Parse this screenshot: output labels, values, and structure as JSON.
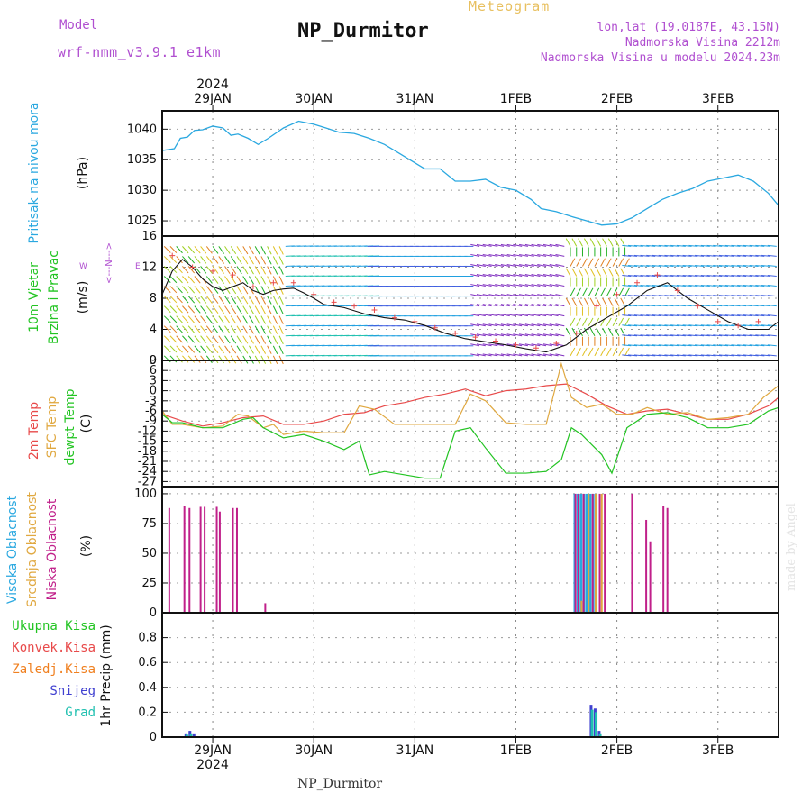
{
  "header": {
    "model_label": "Model",
    "model_id": "wrf-nmm_v3.9.1 e1km",
    "title": "NP_Durmitor",
    "meteogram": "Meteogram",
    "coords": "lon,lat (19.0187E, 43.15N)",
    "elevation": "Nadmorska Visina 2212m",
    "model_elevation": "Nadmorska Visina u modelu 2024.23m"
  },
  "footer": {
    "station": "NP_Durmitor",
    "credit": "made by Angel"
  },
  "colors": {
    "pressure": "#2aa8e0",
    "temp2m": "#e84a4a",
    "sfc": "#e0a840",
    "dewpt": "#22c422",
    "high_cloud": "#2aa8e0",
    "mid_cloud": "#e0a840",
    "low_cloud": "#c0208a",
    "total_precip": "#22c422",
    "conv": "#e84a4a",
    "frozen": "#f08020",
    "snow": "#4040d0",
    "grad": "#20c0b0",
    "wind_speed": "#111111",
    "gust": "#e84a4a"
  },
  "chart_data": [
    {
      "type": "line",
      "panel": "pressure",
      "ylabel_main": "Pritisak na nivou mora",
      "ylabel_unit": "(hPa)",
      "time_unit": "days from 28 JAN 2024 12 UTC",
      "ylim": [
        1022.5,
        1043
      ],
      "yticks": [
        1025,
        1030,
        1035,
        1040
      ],
      "series": [
        {
          "name": "",
          "x": [
            0,
            0.12,
            0.18,
            0.25,
            0.32,
            0.4,
            0.5,
            0.6,
            0.68,
            0.75,
            0.85,
            0.95,
            1.05,
            1.2,
            1.35,
            1.5,
            1.62,
            1.75,
            1.9,
            2.05,
            2.2,
            2.35,
            2.5,
            2.6,
            2.75,
            2.9,
            3.05,
            3.2,
            3.35,
            3.5,
            3.65,
            3.75,
            3.9,
            4.05,
            4.2,
            4.35,
            4.5,
            4.65,
            4.8,
            4.95,
            5.1,
            5.25,
            5.4,
            5.55,
            5.7,
            5.85,
            6.0,
            6.1
          ],
          "y": [
            1036.5,
            1036.8,
            1038.5,
            1038.7,
            1039.8,
            1039.9,
            1040.5,
            1040.2,
            1039,
            1039.2,
            1038.5,
            1037.5,
            1038.5,
            1040.2,
            1041.3,
            1040.8,
            1040.2,
            1039.5,
            1039.3,
            1038.5,
            1037.5,
            1036,
            1034.5,
            1033.5,
            1033.5,
            1031.5,
            1031.5,
            1031.8,
            1030.5,
            1030,
            1028.5,
            1027,
            1026.5,
            1025.7,
            1025,
            1024.3,
            1024.5,
            1025.5,
            1027,
            1028.5,
            1029.5,
            1030.3,
            1031.5,
            1032,
            1032.5,
            1031.5,
            1029.5,
            1027.5
          ]
        }
      ]
    },
    {
      "type": "line",
      "panel": "wind",
      "ylabel_main": "10m Vjetar",
      "ylabel_sub": "Brzina i Pravac",
      "ylabel_unit": "(m/s)",
      "compass": "N",
      "compass_w": "W",
      "compass_e": "E",
      "ylim": [
        0,
        16
      ],
      "yticks": [
        0,
        4,
        8,
        12,
        16
      ],
      "series": [
        {
          "name": "",
          "x": [
            0,
            0.1,
            0.2,
            0.3,
            0.4,
            0.5,
            0.6,
            0.7,
            0.8,
            0.9,
            1.0,
            1.1,
            1.2,
            1.3,
            1.4,
            1.5,
            1.6,
            1.7,
            1.8,
            2.0,
            2.2,
            2.4,
            2.6,
            2.8,
            3.0,
            3.2,
            3.4,
            3.6,
            3.8,
            4.0,
            4.2,
            4.4,
            4.6,
            4.8,
            5.0,
            5.2,
            5.4,
            5.6,
            5.8,
            6.0,
            6.1
          ],
          "y": [
            8.5,
            11.5,
            13,
            12,
            10.5,
            9.5,
            9,
            9.5,
            10,
            9,
            8.5,
            9,
            9.2,
            9.3,
            8.7,
            8,
            7.2,
            7,
            6.8,
            6,
            5.5,
            5.2,
            4.5,
            3.5,
            2.8,
            2.4,
            2,
            1.5,
            1.1,
            2,
            4,
            5.5,
            7,
            9,
            10,
            8,
            6.5,
            5,
            4,
            4,
            5
          ]
        }
      ],
      "gust_x": [
        0.1,
        0.3,
        0.5,
        0.7,
        0.9,
        1.1,
        1.3,
        1.5,
        1.7,
        1.9,
        2.1,
        2.3,
        2.5,
        2.7,
        2.9,
        3.1,
        3.3,
        3.5,
        3.7,
        3.9,
        4.1,
        4.3,
        4.5,
        4.7,
        4.9,
        5.1,
        5.3,
        5.5,
        5.7,
        5.9
      ],
      "gust_y": [
        13.5,
        12,
        11.5,
        11,
        9.5,
        10,
        10,
        8.5,
        7.5,
        7,
        6.5,
        5.5,
        5,
        4.2,
        3.5,
        3,
        2.5,
        2,
        1.6,
        2.2,
        3.5,
        7,
        8.5,
        10,
        11,
        9,
        7,
        5,
        4.5,
        5
      ]
    },
    {
      "type": "line",
      "panel": "temperature",
      "ylabel_main": "2m Temp",
      "ylabel_sub": "SFC Temp",
      "ylabel_sub2": "dewpt Temp",
      "ylabel_unit": "(C)",
      "ylim": [
        -28.5,
        9
      ],
      "yticks": [
        -27,
        -24,
        -21,
        -18,
        -15,
        -12,
        -9,
        -6,
        -3,
        0,
        3,
        6,
        9
      ],
      "series": [
        {
          "name": "2m Temp",
          "x": [
            0,
            0.2,
            0.4,
            0.6,
            0.8,
            1.0,
            1.2,
            1.4,
            1.6,
            1.8,
            2.0,
            2.2,
            2.4,
            2.6,
            2.8,
            3.0,
            3.2,
            3.4,
            3.6,
            3.8,
            4.0,
            4.2,
            4.4,
            4.6,
            4.8,
            5.0,
            5.2,
            5.4,
            5.6,
            5.8,
            6.0,
            6.1
          ],
          "y": [
            -7,
            -9,
            -10.5,
            -9.5,
            -8,
            -7.5,
            -10,
            -10,
            -9,
            -7,
            -6.5,
            -4.5,
            -3.5,
            -2,
            -1,
            0.5,
            -1.5,
            0,
            0.5,
            1.5,
            2,
            -1,
            -4.5,
            -7,
            -6,
            -5.5,
            -7,
            -8.5,
            -8.5,
            -7,
            -4.5,
            -2
          ]
        },
        {
          "name": "SFC Temp",
          "x": [
            0,
            0.1,
            0.2,
            0.4,
            0.6,
            0.75,
            0.85,
            1.0,
            1.1,
            1.2,
            1.4,
            1.6,
            1.8,
            1.95,
            2.1,
            2.3,
            2.5,
            2.7,
            2.9,
            3.05,
            3.2,
            3.4,
            3.6,
            3.8,
            3.95,
            4.05,
            4.2,
            4.35,
            4.5,
            4.65,
            4.8,
            5.0,
            5.2,
            5.4,
            5.6,
            5.8,
            5.95,
            6.1
          ],
          "y": [
            -6,
            -10,
            -10,
            -11,
            -10.5,
            -7,
            -7.5,
            -11,
            -10,
            -13,
            -12,
            -12.5,
            -12.5,
            -4.5,
            -5.5,
            -10,
            -10,
            -10,
            -10,
            -1,
            -3,
            -9.5,
            -10,
            -10,
            8,
            -2,
            -5,
            -4,
            -7,
            -7,
            -5,
            -7,
            -6.5,
            -8.5,
            -8,
            -7,
            -2,
            1.5
          ]
        },
        {
          "name": "dewpt Temp",
          "x": [
            0,
            0.1,
            0.2,
            0.4,
            0.6,
            0.8,
            0.9,
            1.0,
            1.2,
            1.4,
            1.6,
            1.8,
            1.95,
            2.05,
            2.2,
            2.4,
            2.6,
            2.75,
            2.9,
            3.05,
            3.2,
            3.4,
            3.6,
            3.8,
            3.95,
            4.05,
            4.15,
            4.25,
            4.35,
            4.45,
            4.6,
            4.8,
            5.0,
            5.2,
            5.4,
            5.6,
            5.8,
            6.0,
            6.1
          ],
          "y": [
            -7,
            -9.5,
            -9.5,
            -11,
            -11,
            -8.5,
            -8,
            -11,
            -14,
            -13,
            -15,
            -17.5,
            -15,
            -25,
            -24,
            -25,
            -26,
            -26,
            -12,
            -11,
            -17,
            -24.5,
            -24.5,
            -24,
            -20.5,
            -11,
            -13,
            -16,
            -19,
            -24.5,
            -11,
            -7,
            -6.5,
            -8,
            -11,
            -11,
            -10,
            -6,
            -5
          ]
        }
      ]
    },
    {
      "type": "bar",
      "panel": "cloud",
      "ylabel_main": "Visoka Oblacnost",
      "ylabel_sub": "Srednja Oblacnost",
      "ylabel_sub2": "Niska Oblacnost",
      "ylabel_unit": "(%)",
      "ylim": [
        0,
        106
      ],
      "yticks": [
        0,
        25,
        50,
        75,
        100
      ],
      "series": [
        {
          "name": "Visoka Oblacnost",
          "x": [
            4.08,
            4.11,
            4.14,
            4.17,
            4.2,
            4.23,
            4.26,
            4.29
          ],
          "values": [
            100,
            100,
            100,
            100,
            100,
            100,
            100,
            100
          ]
        },
        {
          "name": "Srednja Oblacnost",
          "x": [
            4.15,
            4.22,
            4.29,
            4.35
          ],
          "values": [
            10,
            100,
            100,
            100
          ]
        },
        {
          "name": "Niska Oblacnost",
          "x": [
            0.07,
            0.22,
            0.27,
            0.38,
            0.42,
            0.54,
            0.57,
            0.7,
            0.74,
            1.02,
            4.09,
            4.12,
            4.17,
            4.26,
            4.33,
            4.38,
            4.65,
            4.79,
            4.83,
            4.96,
            5.0
          ],
          "values": [
            88,
            90,
            88,
            89,
            89,
            89,
            85,
            88,
            88,
            8,
            100,
            100,
            100,
            100,
            100,
            100,
            100,
            78,
            60,
            90,
            88
          ]
        }
      ]
    },
    {
      "type": "bar",
      "panel": "precip",
      "ylabel_main": "1hr Precip",
      "ylabel_unit": "(mm)",
      "ylim": [
        0,
        1.0
      ],
      "yticks": [
        0,
        0.2,
        0.4,
        0.6,
        0.8
      ],
      "legend": [
        "Ukupna Kisa",
        "Konvek.Kisa",
        "Zaledj.Kisa",
        "Snijeg",
        "Grad"
      ],
      "series": [
        {
          "name": "Snijeg",
          "x": [
            0.23,
            0.27,
            0.31,
            4.24,
            4.28,
            4.32
          ],
          "values": [
            0.03,
            0.05,
            0.03,
            0.26,
            0.23,
            0.05
          ]
        },
        {
          "name": "Grad",
          "x": [
            0.24,
            0.28,
            4.25,
            4.29,
            4.33
          ],
          "values": [
            0.02,
            0.03,
            0.22,
            0.2,
            0.03
          ]
        }
      ]
    }
  ],
  "time_axis": {
    "year": "2024",
    "labels": [
      "29JAN",
      "30JAN",
      "31JAN",
      "1FEB",
      "2FEB",
      "3FEB"
    ],
    "label_x": [
      0.5,
      1.5,
      2.5,
      3.5,
      4.5,
      5.5
    ],
    "xlim": [
      0,
      6.1
    ]
  }
}
